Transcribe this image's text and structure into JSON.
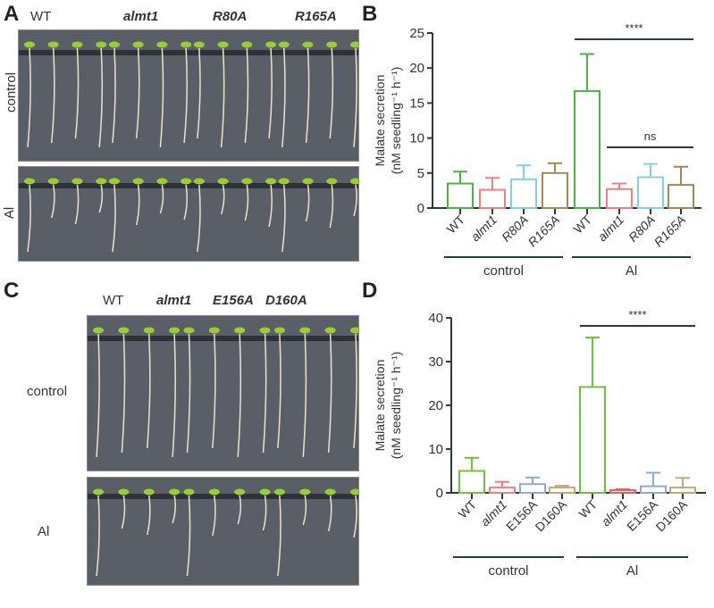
{
  "panels": {
    "a": "A",
    "b": "B",
    "c": "C",
    "d": "D"
  },
  "photo_a": {
    "genotypes": [
      "WT",
      "almt1",
      "R80A",
      "R165A"
    ],
    "rows": [
      "control",
      "Al"
    ]
  },
  "photo_c": {
    "genotypes": [
      "WT",
      "almt1",
      "E156A",
      "D160A"
    ],
    "rows": [
      "control",
      "Al"
    ]
  },
  "chart_data": [
    {
      "type": "bar",
      "panel": "B",
      "ylabel": "Malate secretion",
      "ylabel2": "(nM seedling⁻¹ h⁻¹)",
      "ylim": [
        0,
        25
      ],
      "yticks": [
        "0",
        "5",
        "10",
        "15",
        "20",
        "25"
      ],
      "categories": [
        "WT",
        "almt1",
        "R80A",
        "R165A",
        "WT",
        "almt1",
        "R80A",
        "R165A"
      ],
      "groups": [
        "control",
        "Al"
      ],
      "values": [
        3.5,
        2.6,
        4.1,
        5.0,
        16.7,
        2.7,
        4.4,
        3.3
      ],
      "errors": [
        1.7,
        1.7,
        2.0,
        1.4,
        5.3,
        0.8,
        1.9,
        2.6
      ],
      "colors": [
        "#4bb543",
        "#f08080",
        "#7fd3e0",
        "#a08a50",
        "#4bb543",
        "#f08080",
        "#7fd3e0",
        "#a08a50"
      ],
      "annotations": [
        {
          "text": "****",
          "span": [
            4,
            7
          ]
        },
        {
          "text": "ns",
          "span": [
            5,
            7
          ]
        }
      ]
    },
    {
      "type": "bar",
      "panel": "D",
      "ylabel": "Malate secretion",
      "ylabel2": "(nM seedling⁻¹ h⁻¹)",
      "ylim": [
        0,
        40
      ],
      "yticks": [
        "0",
        "10",
        "20",
        "30",
        "40"
      ],
      "categories": [
        "WT",
        "almt1",
        "E156A",
        "D160A",
        "WT",
        "almt1",
        "E156A",
        "D160A"
      ],
      "groups": [
        "control",
        "Al"
      ],
      "values": [
        5.0,
        1.2,
        2.0,
        1.2,
        24.2,
        0.6,
        1.5,
        1.2
      ],
      "errors": [
        3.0,
        1.3,
        1.5,
        0.4,
        11.3,
        0.2,
        3.1,
        2.2
      ],
      "colors": [
        "#6cc23a",
        "#f08080",
        "#8fa8d8",
        "#c0a878",
        "#6cc23a",
        "#e06060",
        "#8fa8d8",
        "#c0a878"
      ],
      "annotations": [
        {
          "text": "****",
          "span": [
            4,
            7
          ]
        }
      ]
    }
  ]
}
